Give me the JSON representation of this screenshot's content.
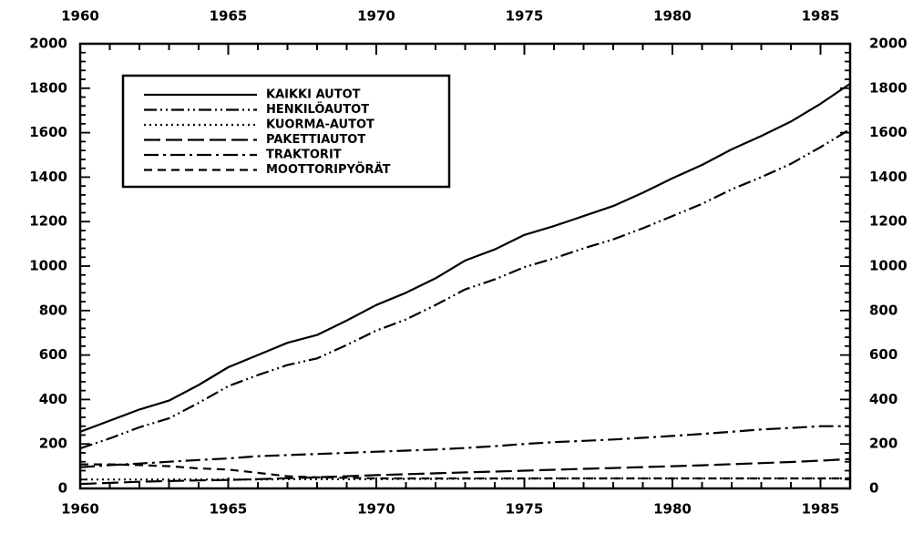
{
  "chart_data": {
    "type": "line",
    "title": "",
    "xlabel": "",
    "ylabel": "",
    "xlim": [
      1960,
      1986
    ],
    "ylim": [
      0,
      2000
    ],
    "x_ticks": [
      "1960",
      "1965",
      "1970",
      "1975",
      "1980",
      "1985"
    ],
    "y_ticks": [
      "0",
      "200",
      "400",
      "600",
      "800",
      "1000",
      "1200",
      "1400",
      "1600",
      "1800",
      "2000"
    ],
    "grid": false,
    "legend_position": "top-left",
    "x": [
      1960,
      1961,
      1962,
      1963,
      1964,
      1965,
      1966,
      1967,
      1968,
      1969,
      1970,
      1971,
      1972,
      1973,
      1974,
      1975,
      1976,
      1977,
      1978,
      1979,
      1980,
      1981,
      1982,
      1983,
      1984,
      1985,
      1986
    ],
    "series": [
      {
        "name": "KAIKKI AUTOT",
        "dash": "solid",
        "values": [
          255,
          305,
          355,
          395,
          465,
          545,
          600,
          655,
          690,
          755,
          825,
          880,
          945,
          1025,
          1075,
          1140,
          1180,
          1225,
          1270,
          1330,
          1395,
          1455,
          1525,
          1585,
          1650,
          1730,
          1820
        ]
      },
      {
        "name": "HENKILÖAUTOT",
        "dash": "dashdotdot",
        "values": [
          180,
          225,
          275,
          315,
          385,
          460,
          510,
          555,
          585,
          645,
          710,
          760,
          825,
          895,
          940,
          995,
          1035,
          1080,
          1120,
          1170,
          1225,
          1280,
          1345,
          1400,
          1460,
          1535,
          1615
        ]
      },
      {
        "name": "KUORMA-AUTOT",
        "dash": "dotted",
        "values": [
          40,
          40,
          40,
          40,
          40,
          40,
          40,
          42,
          42,
          42,
          42,
          43,
          43,
          44,
          44,
          44,
          45,
          45,
          45,
          45,
          45,
          45,
          45,
          45,
          45,
          45,
          45
        ]
      },
      {
        "name": "PAKETTIAUTOT",
        "dash": "longdash",
        "values": [
          20,
          25,
          30,
          33,
          36,
          38,
          42,
          46,
          50,
          55,
          60,
          64,
          68,
          72,
          76,
          80,
          84,
          88,
          92,
          96,
          100,
          104,
          109,
          114,
          119,
          125,
          132
        ]
      },
      {
        "name": "TRAKTORIT",
        "dash": "dashdot",
        "values": [
          95,
          105,
          112,
          120,
          128,
          135,
          145,
          150,
          155,
          160,
          165,
          170,
          175,
          182,
          190,
          200,
          208,
          214,
          220,
          228,
          236,
          245,
          255,
          265,
          272,
          280,
          280
        ]
      },
      {
        "name": "MOOTTORIPYÖRÄT",
        "dash": "dashed",
        "values": [
          108,
          108,
          105,
          100,
          90,
          85,
          70,
          55,
          50,
          48,
          45,
          45,
          45,
          45,
          45,
          45,
          45,
          45,
          45,
          45,
          45,
          45,
          45,
          45,
          45,
          45,
          45
        ]
      }
    ]
  }
}
